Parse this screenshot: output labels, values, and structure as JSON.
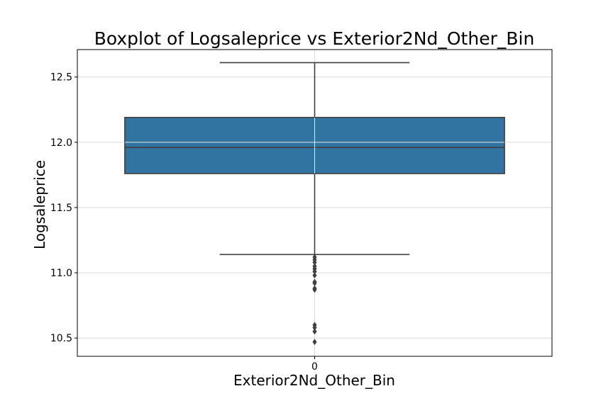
{
  "chart_data": {
    "type": "box",
    "title": "Boxplot of Logsaleprice vs Exterior2Nd_Other_Bin",
    "xlabel": "Exterior2Nd_Other_Bin",
    "ylabel": "Logsaleprice",
    "categories": [
      "0"
    ],
    "ylim": [
      10.36,
      12.71
    ],
    "yticks": [
      10.5,
      11.0,
      11.5,
      12.0,
      12.5
    ],
    "ytick_labels": [
      "10.5",
      "11.0",
      "11.5",
      "12.0",
      "12.5"
    ],
    "grid": true,
    "boxes": [
      {
        "category": "0",
        "whisker_low": 11.14,
        "q1": 11.76,
        "median": 11.96,
        "q3": 12.19,
        "whisker_high": 12.61,
        "outliers": [
          11.12,
          11.1,
          11.08,
          11.05,
          11.03,
          11.01,
          10.98,
          10.93,
          10.92,
          10.88,
          10.87,
          10.6,
          10.58,
          10.55,
          10.47
        ]
      }
    ],
    "colors": {
      "box_fill": "#3274a1",
      "line": "#3f3f3f",
      "grid": "#d9d9d9"
    }
  }
}
